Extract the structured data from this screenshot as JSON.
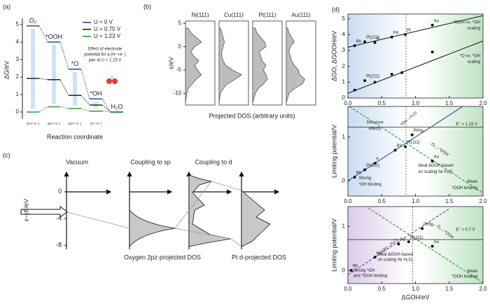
{
  "chart_data": [
    {
      "type": "energy-levels",
      "panel_label": "(a)",
      "ylabel": "ΔG/eV",
      "xlabel": "Reaction coordinate",
      "states": [
        "O₂",
        "*OOH",
        "*O",
        "*OH",
        "H₂O"
      ],
      "categories": [
        "4(H⁺+e⁻)",
        "3(H⁺+e⁻)",
        "2(H⁺+e⁻)",
        "(H⁺+e⁻)",
        null
      ],
      "series": [
        {
          "name": "U = 0 V",
          "color": "#2b4ea2",
          "values": [
            4.92,
            4.0,
            2.45,
            0.75,
            0
          ]
        },
        {
          "name": "U = 0.75 V",
          "color": "#222222",
          "values": [
            1.92,
            1.85,
            0.95,
            0.4,
            0
          ]
        },
        {
          "name": "U = 1.23 V",
          "color": "#2e9b3e",
          "values": [
            0,
            0.3,
            0.2,
            0.05,
            0
          ]
        }
      ],
      "ylim": [
        -0.4,
        5.2
      ],
      "yticks": [
        0,
        1,
        2,
        3,
        4,
        5
      ],
      "annotation": [
        "Effect of electrode",
        "potential for a (H⁺+e⁻)",
        "pair at U = 1.23 V"
      ]
    },
    {
      "type": "dos",
      "panel_label": "(b)",
      "ylabel": "ε/eV",
      "xlabel": "Projected DOS (arbitrary units)",
      "ylim": [
        -12.5,
        5.5
      ],
      "yticks": [
        -10,
        -5,
        0,
        5
      ],
      "color": "#bdbdbd",
      "y": [
        -12,
        -11,
        -10,
        -9,
        -8,
        -7,
        -6,
        -5,
        -4,
        -3,
        -2,
        -1,
        0,
        1,
        2,
        3,
        4
      ],
      "series": [
        {
          "name": "Ni(111)",
          "values": [
            0,
            0.02,
            0.05,
            0.1,
            0.25,
            0.4,
            0.6,
            0.45,
            0.35,
            0.5,
            0.3,
            0.2,
            0.35,
            0.6,
            0.4,
            0.2,
            0.1
          ]
        },
        {
          "name": "Cu(111)",
          "values": [
            0,
            0.02,
            0.05,
            0.15,
            0.3,
            0.6,
            0.85,
            0.5,
            0.25,
            0.15,
            0.1,
            0.1,
            0.15,
            0.2,
            0.15,
            0.1,
            0.05
          ]
        },
        {
          "name": "Pt(111)",
          "values": [
            0,
            0.05,
            0.1,
            0.2,
            0.4,
            0.55,
            0.5,
            0.4,
            0.5,
            0.35,
            0.3,
            0.25,
            0.5,
            0.45,
            0.3,
            0.15,
            0.1
          ]
        },
        {
          "name": "Au(111)",
          "values": [
            0,
            0.05,
            0.1,
            0.3,
            0.6,
            0.7,
            0.5,
            0.45,
            0.3,
            0.2,
            0.15,
            0.1,
            0.15,
            0.3,
            0.2,
            0.1,
            0.05
          ]
        }
      ]
    },
    {
      "type": "schematic",
      "panel_label": "(c)",
      "ylabel": "ε−εF/eV",
      "ylim": [
        -8.5,
        2.5
      ],
      "yticks": [
        0,
        -4,
        -8
      ],
      "columns": [
        "Vacuum",
        "Coupling to sp",
        "Coupling to d"
      ],
      "captions": [
        "Oxygen 2pz-projected DOS",
        "Pt d-projected DOS"
      ]
    },
    {
      "type": "scatter",
      "panel_label": "(d)",
      "ylabel": "ΔGO, ΔGOOH/eV",
      "xlim": [
        0,
        2
      ],
      "xticks": [
        {
          "value": 0,
          "label": "0.0"
        },
        0.5,
        {
          "value": 1,
          "label": "1.0"
        },
        1.5,
        {
          "value": 2,
          "label": "2.0"
        }
      ],
      "ylim": [
        0,
        5.3
      ],
      "yticks": [
        0,
        1,
        2,
        3,
        4,
        5
      ],
      "vline": 0.86,
      "lines": [
        {
          "color": "#222222",
          "x": [
            0,
            2
          ],
          "values": [
            3.2,
            5.2
          ]
        },
        {
          "color": "#222222",
          "x": [
            0,
            2
          ],
          "values": [
            0.3,
            3.6
          ]
        }
      ],
      "points": {
        "x": [
          0.1,
          0.25,
          0.4,
          0.65,
          0.85,
          1.25,
          0.1,
          0.25,
          0.4,
          0.65,
          0.8,
          1.25
        ],
        "y": [
          3.3,
          3.55,
          3.5,
          3.85,
          4.0,
          4.6,
          0.5,
          1.1,
          1.0,
          1.5,
          1.6,
          2.9
        ],
        "labels": [
          "Rh",
          "Pt(211)",
          "Ir",
          "Pd",
          "Pt",
          "Au",
          null,
          "Pt(211)",
          null,
          null,
          null,
          null
        ],
        "label_colors": [
          "#222222",
          "#d43a3a",
          "#222222",
          "#222222",
          "#222222",
          "#222222",
          "#222222",
          "#d43a3a",
          "#222222",
          "#222222",
          "#222222",
          "#222222"
        ]
      },
      "annotations": [
        "*OOH vs. *OH",
        "scaling",
        "*O vs. *OH",
        "scaling"
      ]
    },
    {
      "type": "scatter",
      "ylabel": "Limiting potential/V",
      "xlim": [
        0,
        2
      ],
      "xticks": [
        {
          "value": 0,
          "label": "0.0"
        },
        0.5,
        {
          "value": 1,
          "label": "1.0"
        },
        1.5,
        {
          "value": 2,
          "label": "2.0"
        }
      ],
      "ylim": [
        -0.35,
        1.7
      ],
      "yticks": [
        0,
        1
      ],
      "vline": 0.86,
      "hline": 1.23,
      "lines": [
        {
          "color": "#2b4ea2",
          "x": [
            0,
            1.7
          ],
          "values": [
            0,
            1.7
          ]
        },
        {
          "color": "#2e9b3e",
          "x": [
            0.02,
            2
          ],
          "values": [
            1.7,
            -0.28
          ]
        }
      ],
      "points": {
        "x": [
          0.1,
          0.25,
          0.4,
          0.7,
          0.85,
          0.95,
          1.25
        ],
        "y": [
          0.08,
          0.25,
          0.4,
          0.7,
          0.78,
          1.05,
          0.45
        ],
        "labels": [
          "Rh",
          "Pt(211)",
          "Ir",
          "Pd",
          "Pt(111)",
          "PtHg₄",
          "Au"
        ],
        "label_colors": [
          "#222222",
          "#d43a3a",
          "#222222",
          "#222222",
          "#222222",
          "#222222",
          "#222222"
        ]
      },
      "annotations": [
        "Structure",
        "effects",
        "*OH→H₂O",
        "E° = 1.23 V",
        "O₂→*OOH",
        "Strong",
        "*OH binding",
        "Ideal ΔGOH based",
        "on scaling for H₂O",
        "Week",
        "*OOH binding"
      ]
    },
    {
      "type": "scatter",
      "ylabel": "Limiting potential/V",
      "xlabel": "ΔGOH/eV",
      "xlim": [
        0,
        2
      ],
      "xticks": [
        {
          "value": 0,
          "label": "0.0"
        },
        0.5,
        {
          "value": 1,
          "label": "1.0"
        },
        1.5,
        {
          "value": 2,
          "label": "2.0"
        }
      ],
      "ylim": [
        -0.3,
        1.45
      ],
      "yticks": [
        0,
        1
      ],
      "vline": 0.96,
      "hline": 0.7,
      "lines": [
        {
          "color": "#7b3f9e",
          "x": [
            0,
            1.5
          ],
          "values": [
            -0.1,
            1.4
          ]
        },
        {
          "color": "#2e9b3e",
          "x": [
            0.3,
            2
          ],
          "values": [
            1.42,
            -0.28
          ]
        }
      ],
      "points": {
        "x": [
          0.05,
          0.4,
          0.75,
          0.9,
          1.1,
          1.25
        ],
        "y": [
          0.0,
          0.3,
          0.6,
          0.65,
          0.95,
          0.55
        ],
        "labels": [
          "Rh",
          "Ir",
          "Pd",
          "Pt(111)",
          "PtHg₄",
          "Au"
        ],
        "label_colors": [
          "#222222",
          "#222222",
          "#222222",
          "#222222",
          "#222222",
          "#222222"
        ]
      },
      "annotations": [
        "*OOH→H₂O₂",
        "O₂→*OOH",
        "E° = 0.7 V",
        "Strong *OH",
        "and *OOH binding",
        "Ideal ΔGOH based",
        "on scaling for H₂O₂",
        "Week",
        "*OOH binding"
      ]
    }
  ]
}
